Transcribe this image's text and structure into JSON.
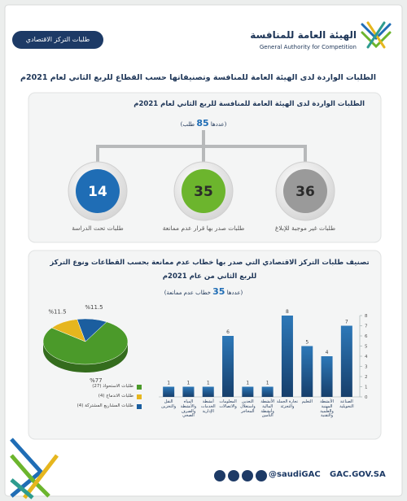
{
  "header": {
    "org_ar": "الهيئة العامة للمنافسة",
    "org_en": "General Authority for Competition",
    "tag": "طلبات التركز الاقتصادي"
  },
  "title": "الطلبات الواردة لدى الهيئة العامة للمنافسة وتصنيفاتها حسب القطاع للربع الثاني لعام 2021م",
  "requests": {
    "title": "الطلبات الواردة لدى الهيئة العامة للمنافسة للربع الثاني لعام 2021م",
    "count_prefix": "(عددها",
    "count": 85,
    "count_suffix": "طلب)",
    "items": [
      {
        "label": "طلبات غير موجبة للإبلاغ",
        "value": 36,
        "color": "#9a9a9a"
      },
      {
        "label": "طلبات صدر بها قرار عدم ممانعة",
        "value": 35,
        "color": "#6cb52d"
      },
      {
        "label": "طلبات تحت الدراسة",
        "value": 14,
        "color": "#1f6db5"
      }
    ]
  },
  "classification": {
    "title": [
      "تصنيف طلبات التركز الاقتصادي التي صدر بها خطاب عدم ممانعة بحسب القطاعات ونوع التركز",
      "للربع الثاني من عام 2021م"
    ],
    "count_prefix": "(عددها",
    "count": 35,
    "count_suffix": "خطاب عدم ممانعة)"
  },
  "chart_data": [
    {
      "type": "pie",
      "categories": [
        "طلبات الاستحواذ (27)",
        "طلبات الاندماج (4)",
        "طلبات المشاريع المشتركة (4)"
      ],
      "values": [
        77,
        11.5,
        11.5
      ],
      "value_labels": [
        "%77",
        "%11.5",
        "%11.5"
      ],
      "colors": [
        "#4b9a2a",
        "#e6b61e",
        "#1b5e9f"
      ]
    },
    {
      "type": "bar",
      "categories": [
        "النقل والتخزين",
        "المياه والأنشطة والصرف الصحي",
        "أنشطة الخدمات الإدارية",
        "المعلومات والاتصالات",
        "التعدين واستغلال المحاجر",
        "الأنشطة المالية وأنشطة التأمين",
        "تجارة الجملة والتجزئة",
        "التعليم",
        "الأنشطة المهنية والعلمية والتقنية",
        "الصناعة التحويلية"
      ],
      "values": [
        1,
        1,
        1,
        6,
        1,
        1,
        8,
        5,
        4,
        7
      ],
      "color": "#1f5f99",
      "ylim": [
        0,
        8
      ],
      "yticks": [
        0,
        1,
        2,
        3,
        4,
        5,
        6,
        7,
        8
      ],
      "y_axis_side": "right"
    }
  ],
  "footer": {
    "handle": "@saudiGAC",
    "site": "GAC.GOV.SA"
  }
}
